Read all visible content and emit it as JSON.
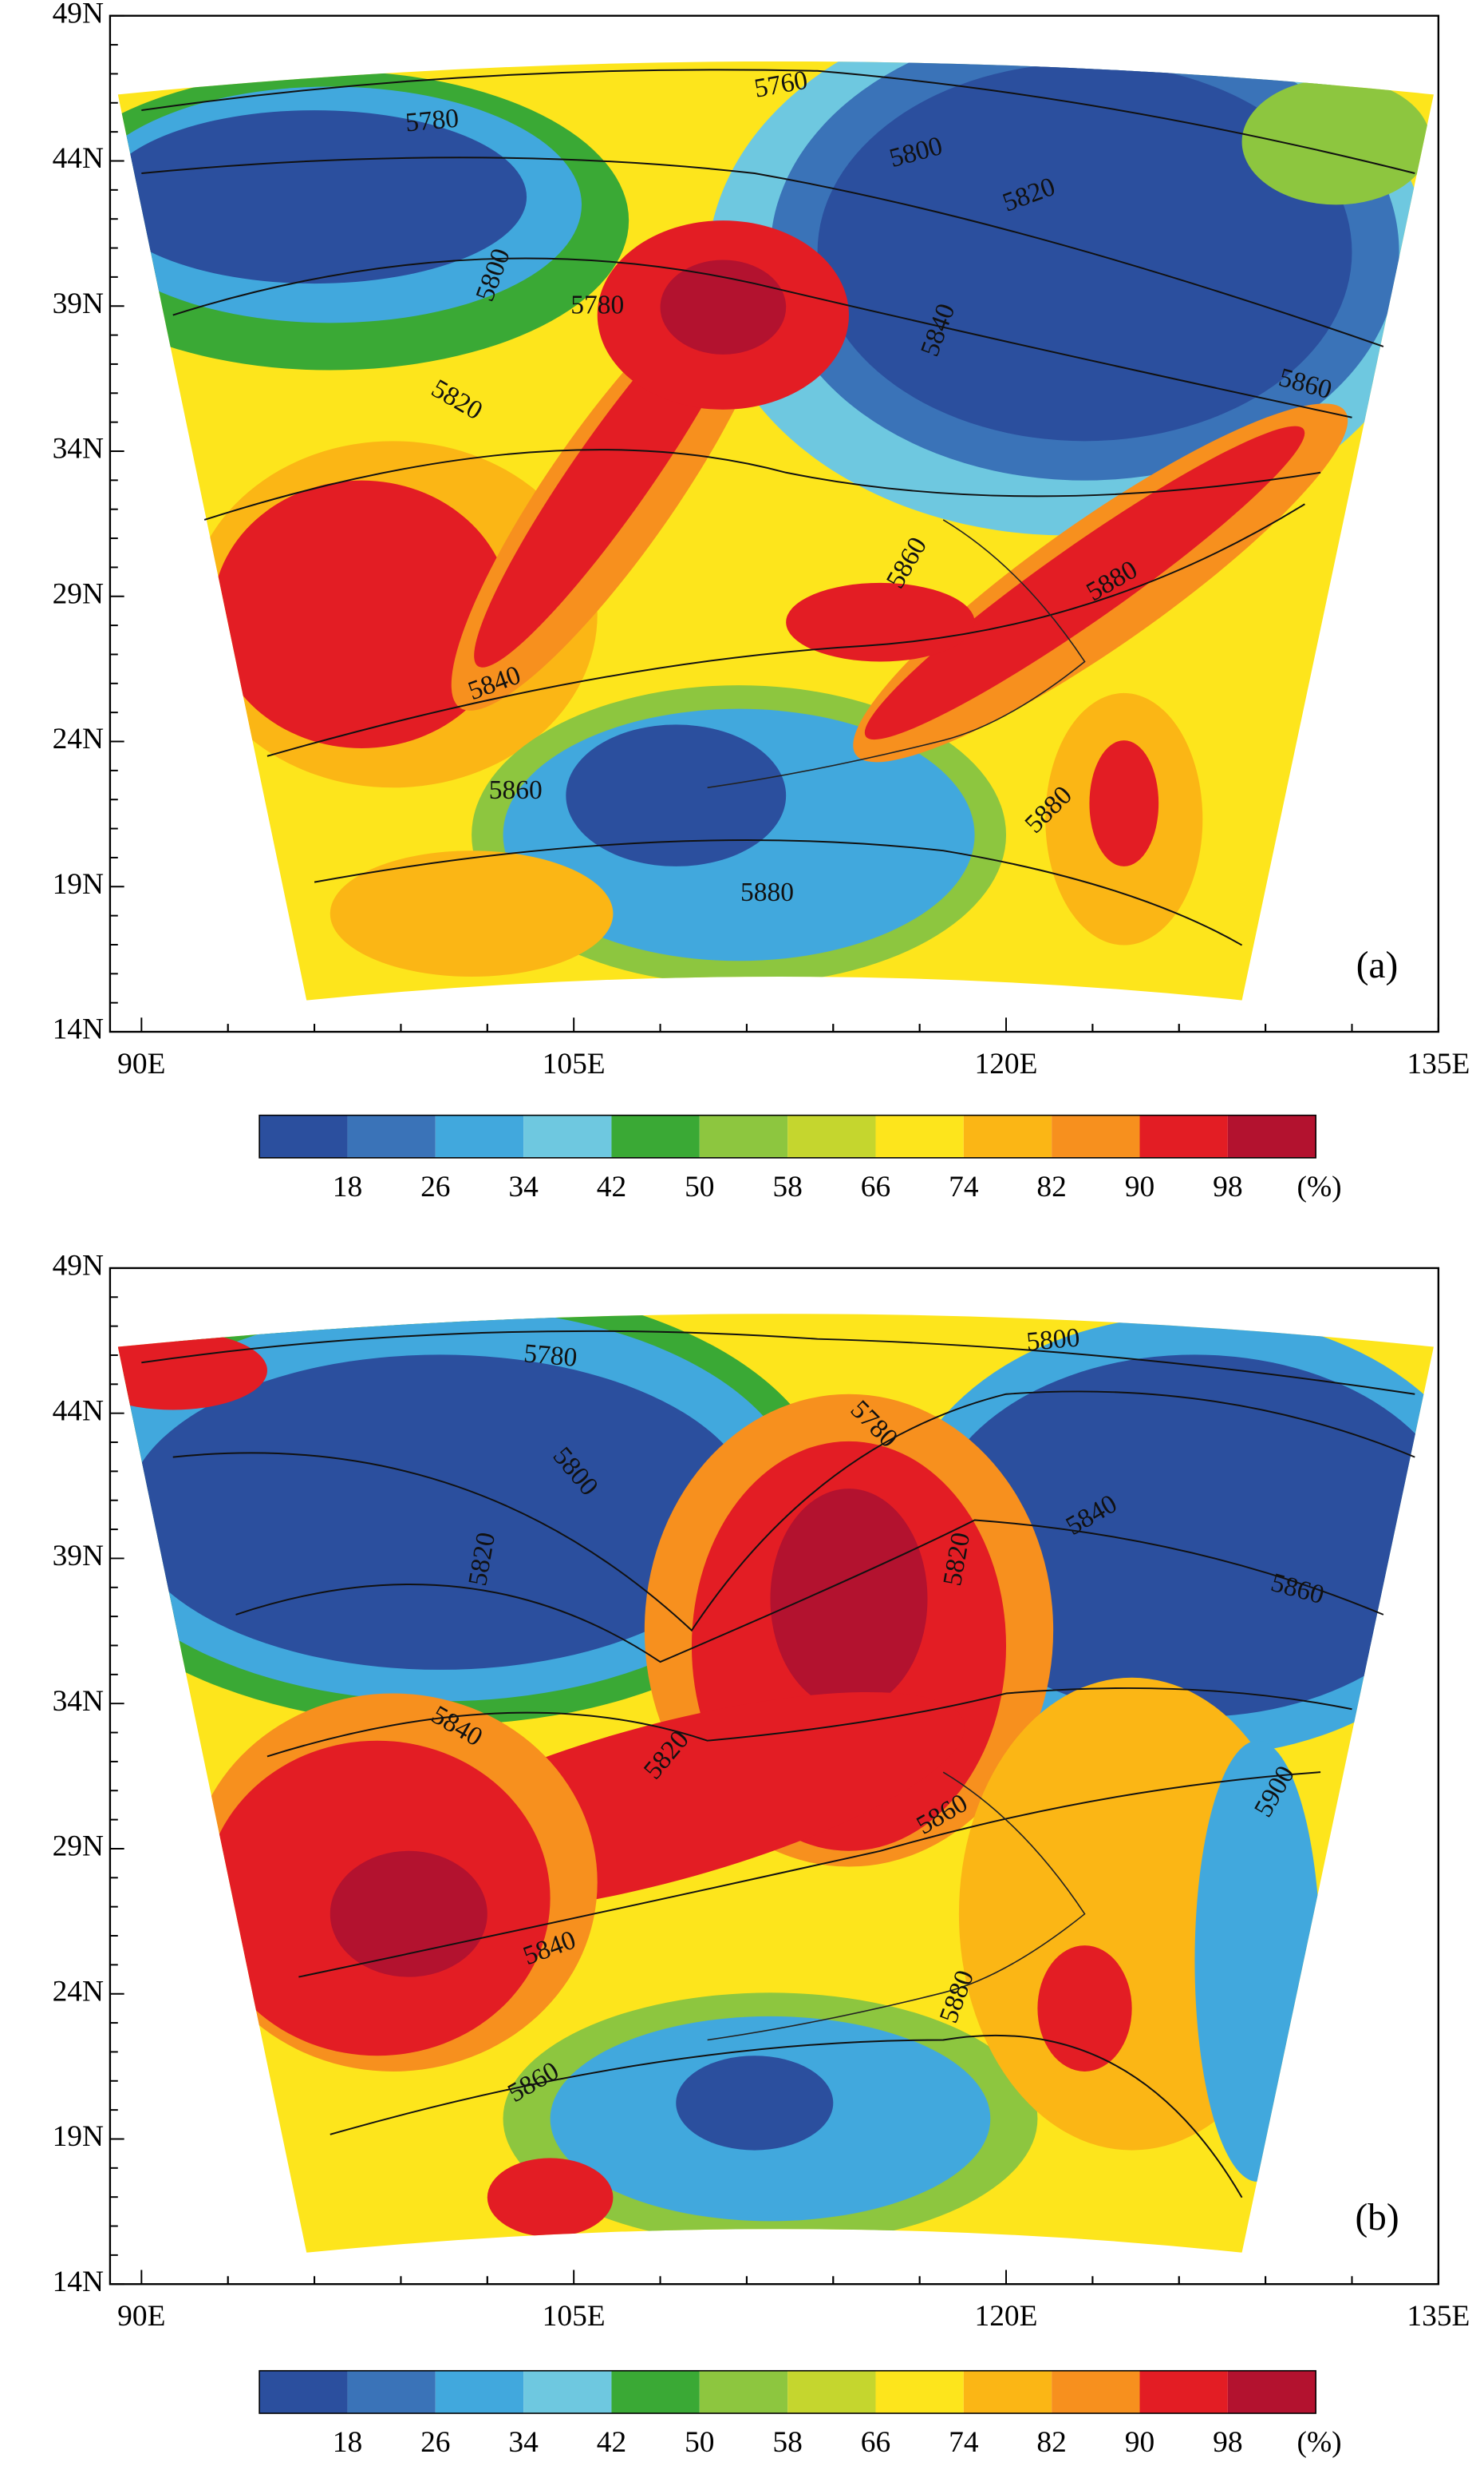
{
  "axes": {
    "x_ticks": [
      "90E",
      "105E",
      "120E",
      "135E"
    ],
    "y_ticks": [
      "49N",
      "44N",
      "39N",
      "34N",
      "29N",
      "24N",
      "19N",
      "14N"
    ]
  },
  "panels": [
    {
      "label": "(a)",
      "contour_labels": [
        5760,
        5780,
        5800,
        5820,
        5800,
        5780,
        5840,
        5860,
        5820,
        5860,
        5880,
        5840,
        5860,
        5880,
        5880
      ]
    },
    {
      "label": "(b)",
      "contour_labels": [
        5780,
        5800,
        5780,
        5800,
        5820,
        5840,
        5820,
        5860,
        5840,
        5820,
        5860,
        5900,
        5840,
        5880,
        5860
      ]
    }
  ],
  "colorbar": {
    "levels": [
      18,
      26,
      34,
      42,
      50,
      58,
      66,
      74,
      82,
      90,
      98
    ],
    "unit": "(%)",
    "colors": [
      "#2b4f9e",
      "#3a73b8",
      "#41a8dd",
      "#6ec8e0",
      "#3aa935",
      "#8dc63f",
      "#c5d62e",
      "#fde51c",
      "#fbb615",
      "#f7901e",
      "#e31d24",
      "#b3122f"
    ]
  }
}
